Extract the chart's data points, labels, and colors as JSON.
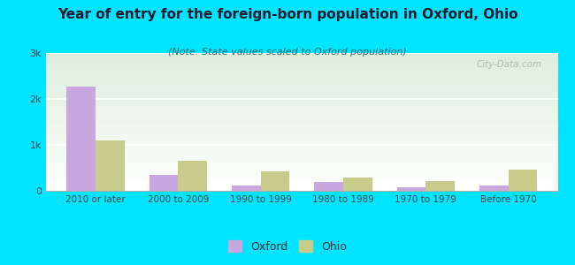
{
  "title": "Year of entry for the foreign-born population in Oxford, Ohio",
  "subtitle": "(Note: State values scaled to Oxford population)",
  "categories": [
    "2010 or later",
    "2000 to 2009",
    "1990 to 1999",
    "1980 to 1989",
    "1970 to 1979",
    "Before 1970"
  ],
  "oxford_values": [
    2270,
    350,
    110,
    185,
    80,
    115
  ],
  "ohio_values": [
    1100,
    650,
    420,
    290,
    210,
    470
  ],
  "oxford_color": "#c9a8e0",
  "ohio_color": "#c8cc8a",
  "background_color": "#00e5ff",
  "ylim": [
    0,
    3000
  ],
  "yticks": [
    0,
    1000,
    2000,
    3000
  ],
  "ytick_labels": [
    "0",
    "1k",
    "2k",
    "3k"
  ],
  "bar_width": 0.35,
  "title_fontsize": 11,
  "subtitle_fontsize": 8,
  "watermark": "City-Data.com"
}
